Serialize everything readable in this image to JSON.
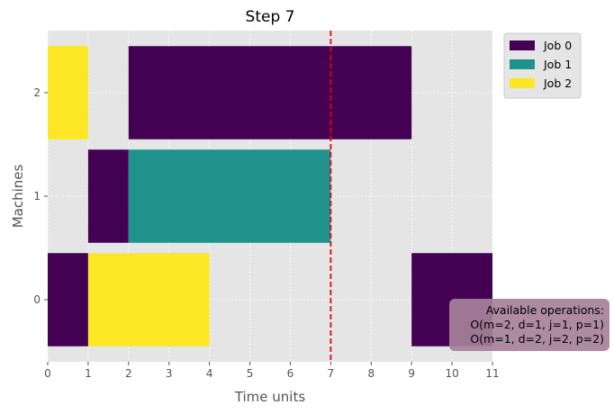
{
  "chart_data": {
    "type": "gantt",
    "title": "Step 7",
    "xlabel": "Time units",
    "ylabel": "Machines",
    "xlim": [
      0,
      11
    ],
    "ylim": [
      -0.6,
      2.6
    ],
    "xticks": [
      0,
      1,
      2,
      3,
      4,
      5,
      6,
      7,
      8,
      9,
      10,
      11
    ],
    "yticks": [
      0,
      1,
      2
    ],
    "grid": true,
    "current_time": 7,
    "current_time_color": "#e8000b",
    "legend": {
      "placement": "upper-left-outside",
      "entries": [
        {
          "name": "Job 0",
          "color": "#440154"
        },
        {
          "name": "Job 1",
          "color": "#21918c"
        },
        {
          "name": "Job 2",
          "color": "#fde725"
        }
      ]
    },
    "operations": [
      {
        "machine": 0,
        "job": 0,
        "start": 0,
        "end": 1
      },
      {
        "machine": 0,
        "job": 2,
        "start": 1,
        "end": 4
      },
      {
        "machine": 0,
        "job": 0,
        "start": 9,
        "end": 11
      },
      {
        "machine": 1,
        "job": 0,
        "start": 1,
        "end": 2
      },
      {
        "machine": 1,
        "job": 1,
        "start": 2,
        "end": 7
      },
      {
        "machine": 2,
        "job": 2,
        "start": 0,
        "end": 1
      },
      {
        "machine": 2,
        "job": 0,
        "start": 2,
        "end": 9
      }
    ],
    "annotation": {
      "lines": [
        "Available operations:",
        "O(m=2, d=1, j=1, p=1)",
        "O(m=1, d=2, j=2, p=2)"
      ],
      "background": "#a6819a"
    }
  }
}
